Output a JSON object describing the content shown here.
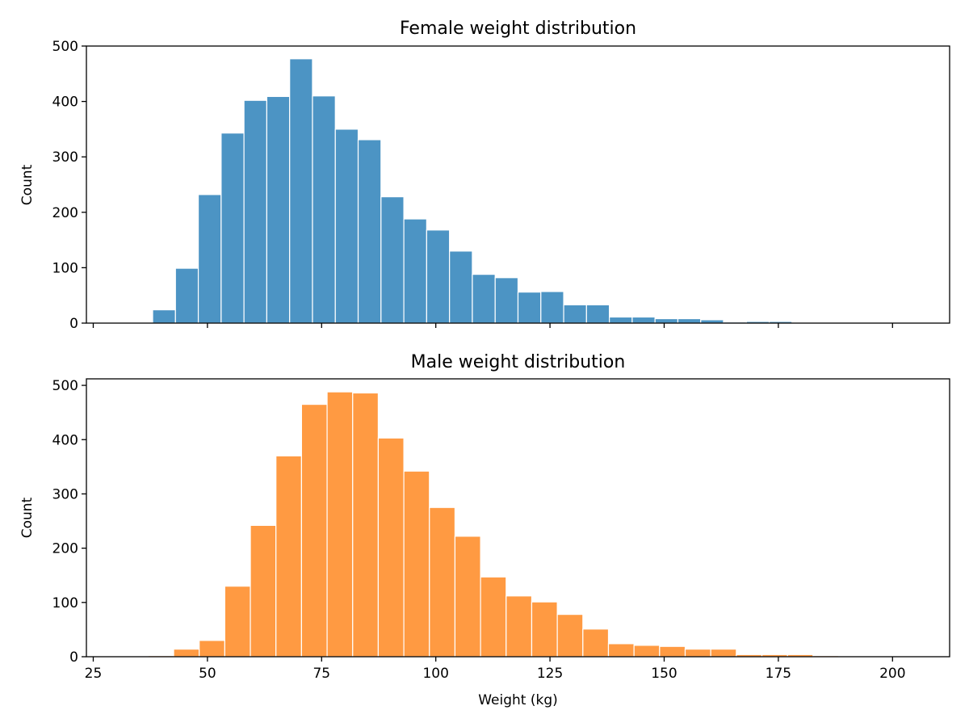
{
  "chart_data": [
    {
      "type": "bar",
      "title": "Female weight distribution",
      "xlabel": "",
      "ylabel": "Count",
      "xlim": [
        23.5,
        212.5
      ],
      "ylim": [
        0,
        500
      ],
      "xticks": [
        25,
        50,
        75,
        100,
        125,
        150,
        175,
        200
      ],
      "yticks": [
        0,
        100,
        200,
        300,
        400,
        500
      ],
      "show_xtick_labels": false,
      "bin_edges": [
        33,
        38,
        43,
        48,
        53,
        58,
        63,
        68,
        73,
        78,
        83,
        88,
        93,
        98,
        103,
        108,
        113,
        118,
        123,
        128,
        133,
        138,
        143,
        148,
        153,
        158,
        163,
        168,
        173,
        178,
        183,
        188,
        193,
        198,
        203,
        208
      ],
      "values": [
        1,
        24,
        99,
        232,
        343,
        402,
        409,
        477,
        410,
        350,
        331,
        228,
        188,
        168,
        130,
        88,
        82,
        56,
        57,
        33,
        33,
        11,
        11,
        8,
        8,
        6,
        2,
        3,
        3,
        1,
        1,
        1,
        1,
        1,
        1
      ],
      "color": "#4c94c4",
      "grid": false
    },
    {
      "type": "bar",
      "title": "Male weight distribution",
      "xlabel": "Weight (kg)",
      "ylabel": "Count",
      "xlim": [
        23.5,
        212.5
      ],
      "ylim": [
        0,
        512
      ],
      "xticks": [
        25,
        50,
        75,
        100,
        125,
        150,
        175,
        200
      ],
      "yticks": [
        0,
        100,
        200,
        300,
        400,
        500
      ],
      "show_xtick_labels": true,
      "bin_edges": [
        37,
        42.6,
        48.2,
        53.8,
        59.4,
        65,
        70.6,
        76.2,
        81.8,
        87.4,
        93,
        98.6,
        104.2,
        109.8,
        115.4,
        121,
        126.6,
        132.2,
        137.8,
        143.4,
        149,
        154.6,
        160.2,
        165.8,
        171.4,
        177,
        182.6,
        188.2,
        193.8,
        199.4,
        205
      ],
      "values": [
        2,
        14,
        30,
        130,
        242,
        370,
        465,
        488,
        486,
        403,
        342,
        275,
        222,
        147,
        112,
        101,
        78,
        51,
        24,
        21,
        19,
        14,
        14,
        4,
        4,
        4,
        2,
        1,
        1,
        1
      ],
      "color": "#ff9a42",
      "grid": false
    }
  ]
}
